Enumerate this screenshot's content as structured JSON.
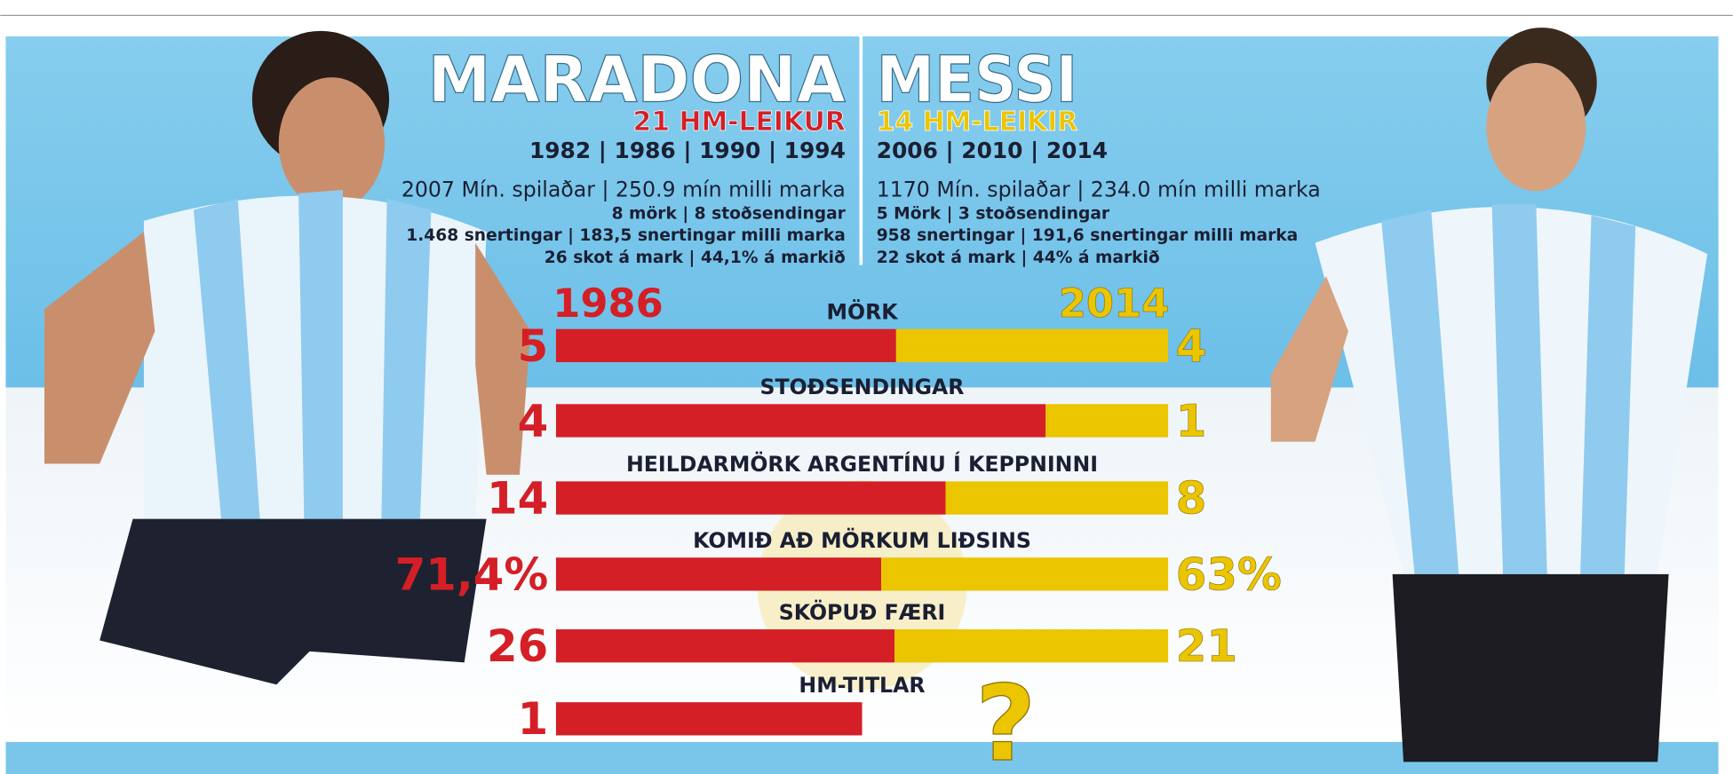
{
  "chart_data": {
    "type": "bar",
    "players": [
      {
        "name": "MARADONA",
        "games": "21 HM-LEIKUR",
        "years": "1982 | 1986 | 1990 | 1994",
        "stats": [
          "2007 Mín. spilaðar | 250.9 mín milli marka",
          "8 mörk | 8 stoðsendingar",
          "1.468 snertingar | 183,5 snertingar milli marka",
          "26 skot á mark | 44,1% á markið"
        ]
      },
      {
        "name": "MESSI",
        "games": "14 HM-LEIKIR",
        "years": "2006 | 2010 | 2014",
        "stats": [
          "1170 Mín. spilaðar | 234.0 mín milli marka",
          "5 Mörk | 3 stoðsendingar",
          "958 snertingar | 191,6 snertingar milli marka",
          "22 skot á mark | 44% á markið"
        ]
      }
    ],
    "categories": [
      "MÖRK",
      "STOÐSENDINGAR",
      "HEILDARMÖRK ARGENTÍNU Í KEPPNINNI",
      "KOMIÐ AÐ MÖRKUM LIÐSINS",
      "SKÖPUÐ FÆRI",
      "HM-TITLAR"
    ],
    "series": [
      {
        "name": "1986",
        "color": "#d41f26",
        "values": [
          5,
          4,
          14,
          71.4,
          26,
          1
        ],
        "value_labels": [
          "5",
          "4",
          "14",
          "71,4%",
          "26",
          "1"
        ]
      },
      {
        "name": "2014",
        "color": "#ebc500",
        "values": [
          4,
          1,
          8,
          63,
          21,
          null
        ],
        "value_labels": [
          "4",
          "1",
          "8",
          "63%",
          "21",
          "?"
        ]
      }
    ]
  }
}
